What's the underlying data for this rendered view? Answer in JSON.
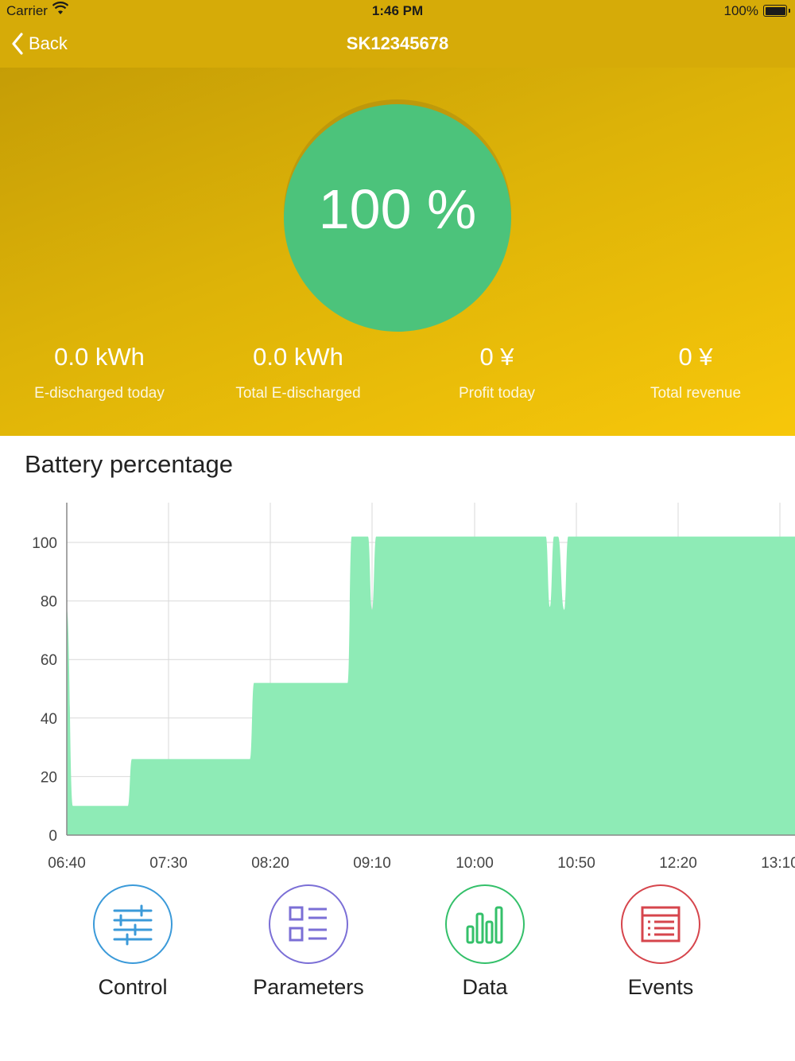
{
  "status_bar": {
    "carrier": "Carrier",
    "time": "1:46 PM",
    "battery": "100%"
  },
  "nav": {
    "back_label": "Back",
    "title": "SK12345678"
  },
  "hero": {
    "percent_label": "100 %",
    "gauge_value": 1.0,
    "stats": [
      {
        "value": "0.0 kWh",
        "label": "E-discharged today"
      },
      {
        "value": "0.0 kWh",
        "label": "Total E-discharged"
      },
      {
        "value": "0 ¥",
        "label": "Profit today"
      },
      {
        "value": "0 ¥",
        "label": "Total revenue"
      }
    ]
  },
  "chart_section_title": "Battery percentage",
  "chart_data": {
    "type": "area",
    "title": "Battery percentage",
    "xlabel": "",
    "ylabel": "",
    "ylim": [
      0,
      100
    ],
    "y_ticks": [
      0,
      20,
      40,
      60,
      80,
      100
    ],
    "x_ticks": [
      "06:40",
      "07:30",
      "08:20",
      "09:10",
      "10:00",
      "10:50",
      "12:20",
      "13:10"
    ],
    "grid": true,
    "fill_color": "#8eebb6",
    "series": [
      {
        "x": [
          "06:40",
          "06:43",
          "06:44",
          "07:10",
          "07:12",
          "07:35",
          "07:37",
          "08:10",
          "08:12",
          "08:58",
          "09:00",
          "09:08",
          "09:10",
          "09:12",
          "09:14",
          "10:35",
          "10:37",
          "10:39",
          "10:41",
          "10:44",
          "10:46",
          "10:48",
          "10:50",
          "13:10"
        ],
        "values": [
          77,
          10,
          10,
          10,
          26,
          26,
          26,
          26,
          52,
          52,
          102,
          102,
          77,
          102,
          102,
          102,
          78,
          102,
          102,
          77,
          102,
          102,
          102,
          102
        ]
      }
    ]
  },
  "actions": [
    {
      "label": "Control",
      "icon": "sliders-icon",
      "color": "#3b9ad9"
    },
    {
      "label": "Parameters",
      "icon": "grid-list-icon",
      "color": "#7b6fd6"
    },
    {
      "label": "Data",
      "icon": "bar-chart-icon",
      "color": "#34c06a"
    },
    {
      "label": "Events",
      "icon": "event-list-icon",
      "color": "#d6454c"
    }
  ]
}
